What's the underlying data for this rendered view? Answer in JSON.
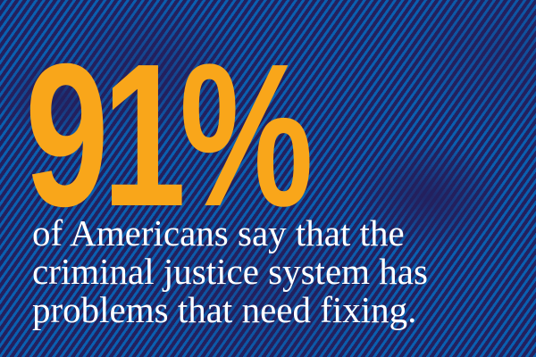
{
  "headline": "91%",
  "lines": [
    "of Americans say that the",
    "criminal justice system has",
    "problems that need fixing."
  ],
  "colors": {
    "background": "#23205e",
    "stripes": "#0a5fb0",
    "headline": "#f9a61a",
    "body_text": "#ffffff"
  }
}
